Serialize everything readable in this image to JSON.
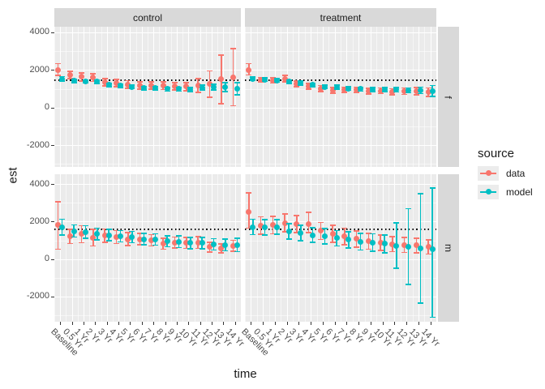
{
  "figure": {
    "xlabel": "time",
    "ylabel": "est",
    "legend": {
      "title": "source",
      "entries": [
        {
          "label": "data",
          "color": "#F8766D"
        },
        {
          "label": "model",
          "color": "#00BFC4"
        }
      ]
    }
  },
  "chart_data": {
    "type": "pointrange",
    "facet_cols": [
      "control",
      "treatment"
    ],
    "facet_rows": [
      "f",
      "m"
    ],
    "categories": [
      "Baseline",
      "0.5 Yr",
      "1 Yr",
      "2 Yr",
      "3 Yr",
      "4 Yr",
      "5 Yr",
      "6 Yr",
      "7 Yr",
      "8 Yr",
      "9 Yr",
      "10 Yr",
      "11 Yr",
      "12 Yr",
      "13 Yr",
      "14 Yr"
    ],
    "xlabel": "time",
    "ylabel": "est",
    "yticks": [
      -2000,
      0,
      2000,
      4000
    ],
    "ylim": {
      "f": [
        -3160,
        4300
      ],
      "m": [
        -3340,
        4520
      ]
    },
    "ref_line": {
      "f": 1500,
      "m": 1630
    },
    "colors": {
      "data": "#F8766D",
      "model": "#00BFC4"
    },
    "panel_bg": "#EBEBEB",
    "strip_bg": "#D9D9D9",
    "grid_color": "#FFFFFF",
    "legend_position": "right",
    "series": [
      {
        "facet_col": "control",
        "facet_row": "f",
        "source": "data",
        "est": [
          2000,
          1730,
          1630,
          1600,
          1350,
          1300,
          1230,
          1180,
          1180,
          1160,
          1130,
          1110,
          1180,
          1250,
          1500,
          1620
        ],
        "lower": [
          1700,
          1540,
          1420,
          1390,
          1150,
          1100,
          1030,
          980,
          980,
          960,
          930,
          900,
          810,
          560,
          210,
          90
        ],
        "upper": [
          2340,
          1930,
          1840,
          1810,
          1550,
          1500,
          1430,
          1380,
          1380,
          1360,
          1330,
          1320,
          1550,
          1950,
          2790,
          3140
        ]
      },
      {
        "facet_col": "control",
        "facet_row": "f",
        "source": "model",
        "est": [
          1520,
          1415,
          1390,
          1375,
          1200,
          1160,
          1100,
          1030,
          1030,
          985,
          985,
          960,
          1060,
          1090,
          1090,
          1000
        ],
        "lower": [
          1400,
          1330,
          1300,
          1290,
          1110,
          1060,
          1000,
          930,
          930,
          880,
          880,
          850,
          930,
          940,
          860,
          680
        ],
        "upper": [
          1640,
          1500,
          1480,
          1460,
          1290,
          1260,
          1200,
          1130,
          1130,
          1090,
          1090,
          1070,
          1190,
          1240,
          1320,
          1320
        ]
      },
      {
        "facet_col": "treatment",
        "facet_row": "f",
        "source": "data",
        "est": [
          2010,
          1485,
          1445,
          1530,
          1270,
          1130,
          1015,
          915,
          945,
          945,
          875,
          890,
          845,
          875,
          875,
          815
        ],
        "lower": [
          1740,
          1360,
          1310,
          1360,
          1120,
          980,
          860,
          760,
          800,
          800,
          720,
          740,
          690,
          700,
          690,
          590
        ],
        "upper": [
          2330,
          1610,
          1580,
          1700,
          1420,
          1280,
          1170,
          1070,
          1090,
          1090,
          1030,
          1040,
          1000,
          1050,
          1060,
          1040
        ]
      },
      {
        "facet_col": "treatment",
        "facet_row": "f",
        "source": "model",
        "est": [
          1530,
          1485,
          1445,
          1370,
          1300,
          1200,
          1100,
          1085,
          1015,
          985,
          955,
          955,
          945,
          915,
          915,
          890
        ],
        "lower": [
          1430,
          1390,
          1350,
          1270,
          1200,
          1100,
          1000,
          985,
          915,
          880,
          850,
          850,
          830,
          790,
          740,
          600
        ],
        "upper": [
          1630,
          1580,
          1540,
          1470,
          1400,
          1300,
          1200,
          1185,
          1115,
          1090,
          1060,
          1060,
          1060,
          1040,
          1090,
          1180
        ]
      },
      {
        "facet_col": "control",
        "facet_row": "m",
        "source": "data",
        "est": [
          1815,
          1210,
          1325,
          1140,
          1240,
          1170,
          1065,
          1065,
          1000,
          810,
          880,
          850,
          880,
          640,
          570,
          710
        ],
        "lower": [
          520,
          830,
          870,
          700,
          880,
          830,
          720,
          760,
          700,
          520,
          580,
          560,
          560,
          380,
          330,
          420
        ],
        "upper": [
          3060,
          1590,
          1780,
          1580,
          1600,
          1510,
          1410,
          1370,
          1300,
          1100,
          1180,
          1140,
          1200,
          900,
          810,
          1000
        ]
      },
      {
        "facet_col": "control",
        "facet_row": "m",
        "source": "model",
        "est": [
          1710,
          1495,
          1450,
          1325,
          1280,
          1210,
          1170,
          1065,
          1040,
          950,
          925,
          850,
          850,
          780,
          750,
          745
        ],
        "lower": [
          1290,
          1170,
          1120,
          1010,
          970,
          910,
          870,
          770,
          740,
          650,
          620,
          550,
          550,
          480,
          430,
          390
        ],
        "upper": [
          2130,
          1820,
          1780,
          1640,
          1590,
          1510,
          1470,
          1360,
          1340,
          1250,
          1230,
          1150,
          1150,
          1080,
          1070,
          1100
        ]
      },
      {
        "facet_col": "treatment",
        "facet_row": "m",
        "source": "data",
        "est": [
          2530,
          1790,
          1815,
          1925,
          1855,
          1880,
          1500,
          1350,
          1200,
          1070,
          950,
          870,
          800,
          760,
          720,
          640
        ],
        "lower": [
          1640,
          1320,
          1350,
          1460,
          1400,
          1420,
          1050,
          900,
          760,
          640,
          530,
          460,
          400,
          360,
          330,
          260
        ],
        "upper": [
          3530,
          2250,
          2280,
          2400,
          2330,
          2480,
          1950,
          1800,
          1640,
          1500,
          1370,
          1280,
          1200,
          1160,
          1110,
          1020
        ]
      },
      {
        "facet_col": "treatment",
        "facet_row": "m",
        "source": "model",
        "est": [
          1710,
          1690,
          1710,
          1470,
          1385,
          1280,
          1215,
          1110,
          1025,
          925,
          880,
          810,
          710,
          670,
          570,
          530
        ],
        "lower": [
          1300,
          1280,
          1330,
          1060,
          980,
          880,
          810,
          700,
          600,
          480,
          420,
          330,
          -500,
          -1350,
          -2350,
          -3100
        ],
        "upper": [
          2120,
          2100,
          2090,
          1880,
          1790,
          1680,
          1620,
          1520,
          1450,
          1370,
          1340,
          1290,
          1920,
          2690,
          3490,
          3790
        ]
      }
    ]
  }
}
